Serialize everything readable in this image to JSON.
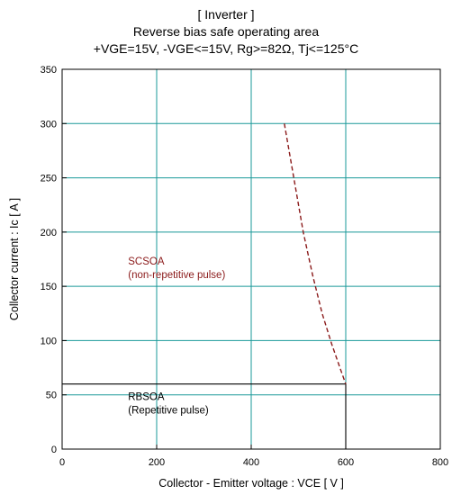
{
  "chart_data": {
    "type": "line",
    "title": [
      "[ Inverter ]",
      "Reverse bias safe operating area",
      "+VGE=15V, -VGE<=15V, Rg>=82Ω, Tj<=125°C"
    ],
    "xlabel": "Collector - Emitter voltage : VCE [ V ]",
    "ylabel": "Collector current : Ic [ A ]",
    "xlim": [
      0,
      800
    ],
    "ylim": [
      0,
      350
    ],
    "xticks": [
      0,
      200,
      400,
      600,
      800
    ],
    "yticks": [
      0,
      50,
      100,
      150,
      200,
      250,
      300,
      350
    ],
    "grid": true,
    "series": [
      {
        "name": "RBSOA",
        "style": "solid",
        "color": "#000000",
        "x": [
          0,
          600,
          600
        ],
        "y": [
          60,
          60,
          0
        ]
      },
      {
        "name": "SCSOA",
        "style": "dashed",
        "color": "#8b1a1a",
        "x": [
          470,
          490,
          510,
          530,
          550,
          570,
          590,
          600
        ],
        "y": [
          300,
          250,
          200,
          160,
          125,
          97,
          72,
          60
        ]
      }
    ],
    "annotations": [
      {
        "id": "scsoa",
        "lines": [
          "SCSOA",
          "(non-repetitive pulse)"
        ],
        "color": "#8b1a1a",
        "x": 170,
        "y": 170
      },
      {
        "id": "rbsoa",
        "lines": [
          "RBSOA",
          "(Repetitive pulse)"
        ],
        "color": "#000000",
        "x": 170,
        "y": 45
      }
    ]
  }
}
